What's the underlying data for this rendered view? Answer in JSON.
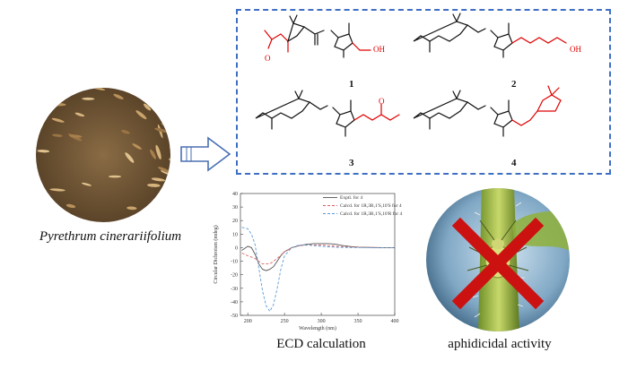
{
  "compounds": [
    {
      "number": "1"
    },
    {
      "number": "2"
    },
    {
      "number": "3"
    },
    {
      "number": "4"
    }
  ],
  "atoms": {
    "oh": "OH",
    "o": "O"
  },
  "species_name": "Pyrethrum cinerariifolium",
  "captions": {
    "ecd": "ECD calculation",
    "aphid": "aphidicidal activity"
  },
  "colors": {
    "box_border": "#3f6fc4",
    "highlight": "#e00000",
    "cross": "#cc1111",
    "expt": "#555555",
    "calc1": "#e06060",
    "calc2": "#5b9bd5"
  },
  "chart_data": {
    "type": "line",
    "xlabel": "Wavelength (nm)",
    "ylabel": "Circular Dichroism (mdeg)",
    "xlim": [
      190,
      400
    ],
    "ylim": [
      -50,
      40
    ],
    "xticks": [
      200,
      250,
      300,
      350,
      400
    ],
    "yticks": [
      40,
      30,
      20,
      10,
      0,
      -10,
      -20,
      -30,
      -40,
      -50
    ],
    "legend_position": "top-right",
    "series": [
      {
        "name": "Exptl. for 4",
        "style": "solid",
        "x": [
          192,
          200,
          205,
          210,
          215,
          220,
          225,
          230,
          235,
          240,
          245,
          250,
          260,
          270,
          280,
          290,
          300,
          310,
          320,
          330,
          340,
          350,
          360,
          380,
          400
        ],
        "y": [
          -2,
          1,
          0,
          -5,
          -12,
          -16,
          -17,
          -16,
          -14,
          -10,
          -6,
          -3,
          0,
          1.5,
          2.5,
          3,
          3,
          3,
          2.5,
          1.5,
          0.8,
          0.4,
          0.2,
          0,
          0
        ]
      },
      {
        "name": "Calcd. for 1R,3R,1'S,10'S for 4",
        "style": "dash",
        "x": [
          192,
          200,
          210,
          215,
          220,
          230,
          240,
          250,
          260,
          270,
          280,
          290,
          300,
          310,
          320,
          340,
          360,
          380,
          400
        ],
        "y": [
          -4,
          -6,
          -8,
          -10,
          -12,
          -12,
          -8,
          -3,
          0,
          1.5,
          1.8,
          2,
          2,
          1.5,
          1,
          0.5,
          0.2,
          0,
          0
        ]
      },
      {
        "name": "Calcd. for 1R,3R,1'S,10'R for 4",
        "style": "dash",
        "x": [
          192,
          200,
          205,
          210,
          215,
          220,
          225,
          230,
          235,
          240,
          245,
          250,
          260,
          270,
          280,
          290,
          300,
          310,
          320,
          340,
          360,
          380,
          400
        ],
        "y": [
          15,
          14,
          10,
          2,
          -15,
          -32,
          -43,
          -47,
          -42,
          -30,
          -16,
          -6,
          0,
          2,
          2,
          1.5,
          1,
          0.6,
          0.3,
          0.1,
          0,
          0,
          0
        ]
      }
    ]
  }
}
